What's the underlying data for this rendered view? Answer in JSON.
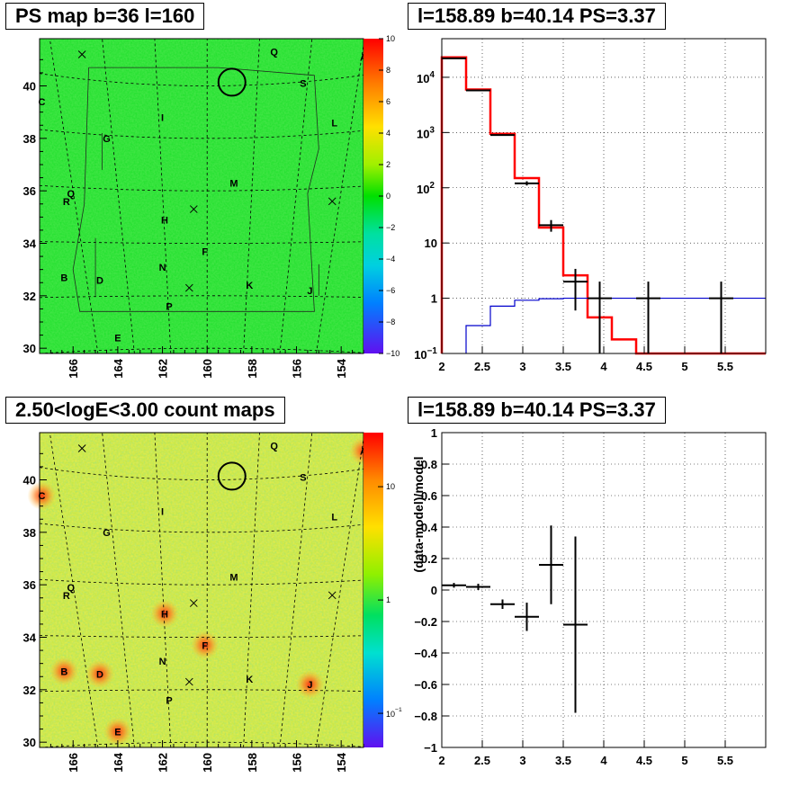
{
  "panels": {
    "ps_map": {
      "title": "PS map b=36 l=160",
      "y_ticks": [
        "30",
        "32",
        "34",
        "36",
        "38",
        "40"
      ],
      "x_ticks": [
        "166",
        "164",
        "162",
        "160",
        "158",
        "156",
        "154"
      ],
      "colorbar_ticks": [
        "10",
        "8",
        "6",
        "4",
        "2",
        "0",
        "−2",
        "−4",
        "−6",
        "−8",
        "−10"
      ]
    },
    "count_map": {
      "title": "2.50<logE<3.00 count maps",
      "y_ticks": [
        "30",
        "32",
        "34",
        "36",
        "38",
        "40"
      ],
      "x_ticks": [
        "166",
        "164",
        "162",
        "160",
        "158",
        "156",
        "154"
      ],
      "colorbar_ticks": [
        "10",
        "1"
      ],
      "colorbar_minor_label": {
        "base": "10",
        "exp": "−1"
      }
    },
    "spectrum": {
      "title": "l=158.89 b=40.14 PS=3.37"
    },
    "residual": {
      "title": "l=158.89 b=40.14 PS=3.37"
    }
  },
  "map_labels": [
    {
      "text": "Q",
      "l": 157.0,
      "b": 41.3
    },
    {
      "text": "A",
      "l": 153.0,
      "b": 41.1
    },
    {
      "text": "S",
      "l": 155.7,
      "b": 40.1
    },
    {
      "text": "C",
      "l": 167.4,
      "b": 39.4
    },
    {
      "text": "I",
      "l": 162.0,
      "b": 38.8
    },
    {
      "text": "L",
      "l": 154.3,
      "b": 38.6
    },
    {
      "text": "G",
      "l": 164.5,
      "b": 38.0
    },
    {
      "text": "M",
      "l": 158.8,
      "b": 36.3
    },
    {
      "text": "Q",
      "l": 166.1,
      "b": 35.9
    },
    {
      "text": "R",
      "l": 166.3,
      "b": 35.6
    },
    {
      "text": "H",
      "l": 161.9,
      "b": 34.9
    },
    {
      "text": "F",
      "l": 160.1,
      "b": 33.7
    },
    {
      "text": "N",
      "l": 162.0,
      "b": 33.1
    },
    {
      "text": "B",
      "l": 166.4,
      "b": 32.7
    },
    {
      "text": "D",
      "l": 164.8,
      "b": 32.6
    },
    {
      "text": "K",
      "l": 158.1,
      "b": 32.4
    },
    {
      "text": "J",
      "l": 155.4,
      "b": 32.2
    },
    {
      "text": "P",
      "l": 161.7,
      "b": 31.6
    },
    {
      "text": "E",
      "l": 164.0,
      "b": 30.4
    }
  ],
  "map_crosses": [
    {
      "l": 165.6,
      "b": 41.2
    },
    {
      "l": 160.6,
      "b": 35.3
    },
    {
      "l": 154.4,
      "b": 35.6
    },
    {
      "l": 160.8,
      "b": 32.3
    }
  ],
  "selected_source": {
    "l": 158.89,
    "b": 40.14
  },
  "chart_data": [
    {
      "type": "heatmap",
      "title": "PS map b=36 l=160",
      "x_axis": "galactic l (deg), reversed",
      "xlim": [
        167.5,
        153
      ],
      "ylim": [
        29.8,
        41.8
      ],
      "zlim": [
        -10,
        10
      ]
    },
    {
      "type": "heatmap",
      "title": "2.50<logE<3.00 count maps",
      "xlim": [
        167.5,
        153
      ],
      "ylim": [
        29.8,
        41.8
      ],
      "z_scale": "log",
      "zlim": [
        0.05,
        30
      ],
      "bright_sources": [
        "A",
        "C",
        "B",
        "D",
        "E",
        "H",
        "F",
        "J"
      ]
    },
    {
      "type": "line",
      "title": "l=158.89 b=40.14 PS=3.37",
      "x_axis": "logE",
      "y_scale": "log",
      "xlim": [
        2,
        6
      ],
      "ylim": [
        0.1,
        50000
      ],
      "x_ticks": [
        2,
        2.5,
        3,
        3.5,
        4,
        4.5,
        5,
        5.5
      ],
      "y_ticks": [
        {
          "v": 0.1,
          "base": "10",
          "exp": "−1"
        },
        {
          "v": 1,
          "label": "1"
        },
        {
          "v": 10,
          "label": "10"
        },
        {
          "v": 100,
          "base": "10",
          "exp": "2"
        },
        {
          "v": 1000,
          "base": "10",
          "exp": "3"
        },
        {
          "v": 10000,
          "base": "10",
          "exp": "4"
        }
      ],
      "grid": true,
      "series": [
        {
          "color": "#ff0000",
          "style": "step",
          "bins": [
            [
              2,
              2.3
            ],
            [
              2.3,
              2.6
            ],
            [
              2.6,
              2.9
            ],
            [
              2.9,
              3.2
            ],
            [
              3.2,
              3.5
            ],
            [
              3.5,
              3.8
            ],
            [
              3.8,
              4.1
            ],
            [
              4.1,
              4.4
            ],
            [
              4.4,
              6
            ]
          ],
          "values": [
            23000,
            6000,
            950,
            150,
            19,
            2.6,
            0.45,
            0.18,
            0.1
          ]
        },
        {
          "color": "#0000cc",
          "style": "step",
          "bins": [
            [
              2.3,
              2.6
            ],
            [
              2.6,
              2.9
            ],
            [
              2.9,
              3.2
            ],
            [
              3.2,
              3.5
            ],
            [
              3.5,
              3.8
            ],
            [
              3.8,
              4.1
            ],
            [
              4.1,
              6
            ]
          ],
          "values": [
            0.32,
            0.72,
            0.92,
            0.98,
            1.0,
            1.0,
            1.0
          ]
        },
        {
          "color": "#000000",
          "style": "errorbars",
          "points": [
            {
              "x": 2.15,
              "xerr": 0.15,
              "y": 22000,
              "ylo": 21700,
              "yhi": 22300
            },
            {
              "x": 2.45,
              "xerr": 0.15,
              "y": 5800,
              "ylo": 5720,
              "yhi": 5880
            },
            {
              "x": 2.75,
              "xerr": 0.15,
              "y": 900,
              "ylo": 880,
              "yhi": 925
            },
            {
              "x": 3.05,
              "xerr": 0.15,
              "y": 120,
              "ylo": 110,
              "yhi": 131
            },
            {
              "x": 3.35,
              "xerr": 0.15,
              "y": 21,
              "ylo": 16,
              "yhi": 26
            },
            {
              "x": 3.65,
              "xerr": 0.15,
              "y": 2,
              "ylo": 0.6,
              "yhi": 3.4
            },
            {
              "x": 3.95,
              "xerr": 0.15,
              "y": 1,
              "ylo": 0.1,
              "yhi": 2
            },
            {
              "x": 4.55,
              "xerr": 0.15,
              "y": 1,
              "ylo": 0.1,
              "yhi": 2
            },
            {
              "x": 5.45,
              "xerr": 0.15,
              "y": 1,
              "ylo": 0.1,
              "yhi": 2
            }
          ]
        }
      ]
    },
    {
      "type": "scatter",
      "title": "l=158.89 b=40.14 PS=3.37",
      "ylabel": "(data-model)/model",
      "xlim": [
        2,
        6
      ],
      "ylim": [
        -1,
        1
      ],
      "x_ticks": [
        2,
        2.5,
        3,
        3.5,
        4,
        4.5,
        5,
        5.5
      ],
      "y_ticks": [
        -1,
        -0.8,
        -0.6,
        -0.4,
        -0.2,
        0,
        0.2,
        0.4,
        0.6,
        0.8,
        1
      ],
      "grid": true,
      "points": [
        {
          "x": 2.15,
          "xerr": 0.15,
          "y": 0.03,
          "ylo": 0.015,
          "yhi": 0.045
        },
        {
          "x": 2.45,
          "xerr": 0.15,
          "y": 0.02,
          "ylo": 0.0,
          "yhi": 0.04
        },
        {
          "x": 2.75,
          "xerr": 0.15,
          "y": -0.09,
          "ylo": -0.12,
          "yhi": -0.06
        },
        {
          "x": 3.05,
          "xerr": 0.15,
          "y": -0.17,
          "ylo": -0.26,
          "yhi": -0.08
        },
        {
          "x": 3.35,
          "xerr": 0.15,
          "y": 0.16,
          "ylo": -0.09,
          "yhi": 0.41
        },
        {
          "x": 3.65,
          "xerr": 0.15,
          "y": -0.22,
          "ylo": -0.78,
          "yhi": 0.34
        }
      ]
    }
  ]
}
